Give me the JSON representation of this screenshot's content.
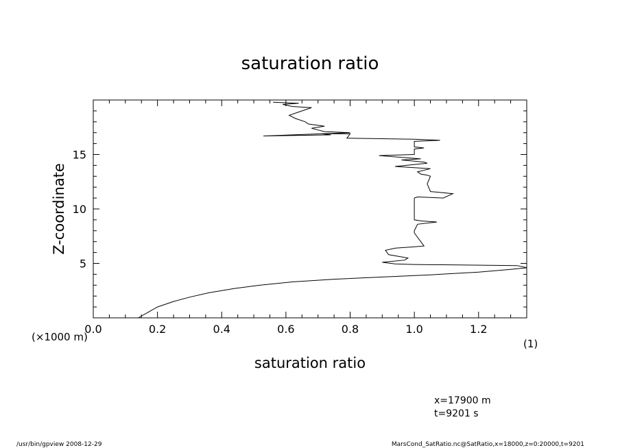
{
  "chart_data": {
    "type": "line",
    "title": "saturation ratio",
    "xlabel": "saturation ratio",
    "ylabel": "Z-coordinate",
    "x_unit_label": "(1)",
    "y_unit_label": "(×1000 m)",
    "xlim": [
      0.0,
      1.35
    ],
    "ylim": [
      0,
      20
    ],
    "x_ticks": [
      0.0,
      0.2,
      0.4,
      0.6,
      0.8,
      1.0,
      1.2
    ],
    "x_tick_labels": [
      "0.0",
      "0.2",
      "0.4",
      "0.6",
      "0.8",
      "1.0",
      "1.2"
    ],
    "y_ticks": [
      5,
      10,
      15
    ],
    "y_tick_labels": [
      "5",
      "10",
      "15"
    ],
    "grid": false,
    "series": [
      {
        "x": [
          0.14,
          0.17,
          0.2,
          0.25,
          0.3,
          0.36,
          0.44,
          0.52,
          0.62,
          0.75,
          0.9,
          1.05,
          1.2,
          1.3,
          1.35,
          1.32,
          1.0,
          0.94,
          0.9,
          0.97,
          0.98,
          0.92,
          0.91,
          0.94,
          0.99,
          1.03,
          1.02,
          1.0,
          1.0,
          1.01,
          1.07,
          1.02,
          1.0,
          1.0,
          1.01,
          1.09,
          1.12,
          1.05,
          1.04,
          1.05,
          1.04,
          1.02,
          1.01,
          1.05,
          0.94,
          1.04,
          1.03,
          0.96,
          1.02,
          0.89,
          1.0,
          1.0,
          1.03,
          1.0,
          1.0,
          1.08,
          1.0,
          0.79,
          0.8,
          0.71,
          0.74,
          0.53,
          0.8,
          0.72,
          0.68,
          0.72,
          0.67,
          0.66,
          0.63,
          0.61,
          0.64,
          0.68,
          0.62,
          0.59,
          0.64,
          0.56
        ],
        "y": [
          0,
          0.5,
          1.0,
          1.5,
          1.9,
          2.3,
          2.7,
          3.0,
          3.3,
          3.55,
          3.75,
          3.95,
          4.2,
          4.45,
          4.6,
          4.8,
          4.9,
          4.95,
          5.1,
          5.3,
          5.5,
          5.8,
          6.2,
          6.4,
          6.5,
          6.6,
          7.0,
          7.8,
          8.0,
          8.6,
          8.8,
          8.9,
          9.0,
          11.0,
          11.1,
          11.0,
          11.4,
          11.6,
          12.3,
          13.0,
          13.1,
          13.2,
          13.4,
          13.7,
          13.9,
          14.2,
          14.3,
          14.5,
          14.6,
          14.9,
          15.0,
          15.5,
          15.6,
          15.7,
          16.2,
          16.3,
          16.4,
          16.5,
          16.9,
          16.9,
          16.8,
          16.7,
          17.0,
          17.1,
          17.4,
          17.6,
          17.8,
          18.0,
          18.3,
          18.6,
          18.9,
          19.3,
          19.4,
          19.6,
          19.7,
          19.8
        ]
      }
    ]
  },
  "info": {
    "x_position": "x=17900  m",
    "time": "t=9201  s"
  },
  "footer": {
    "left": "/usr/bin/gpview   2008-12-29",
    "right": "MarsCond_SatRatio.nc@SatRatio,x=18000,z=0:20000,t=9201"
  }
}
